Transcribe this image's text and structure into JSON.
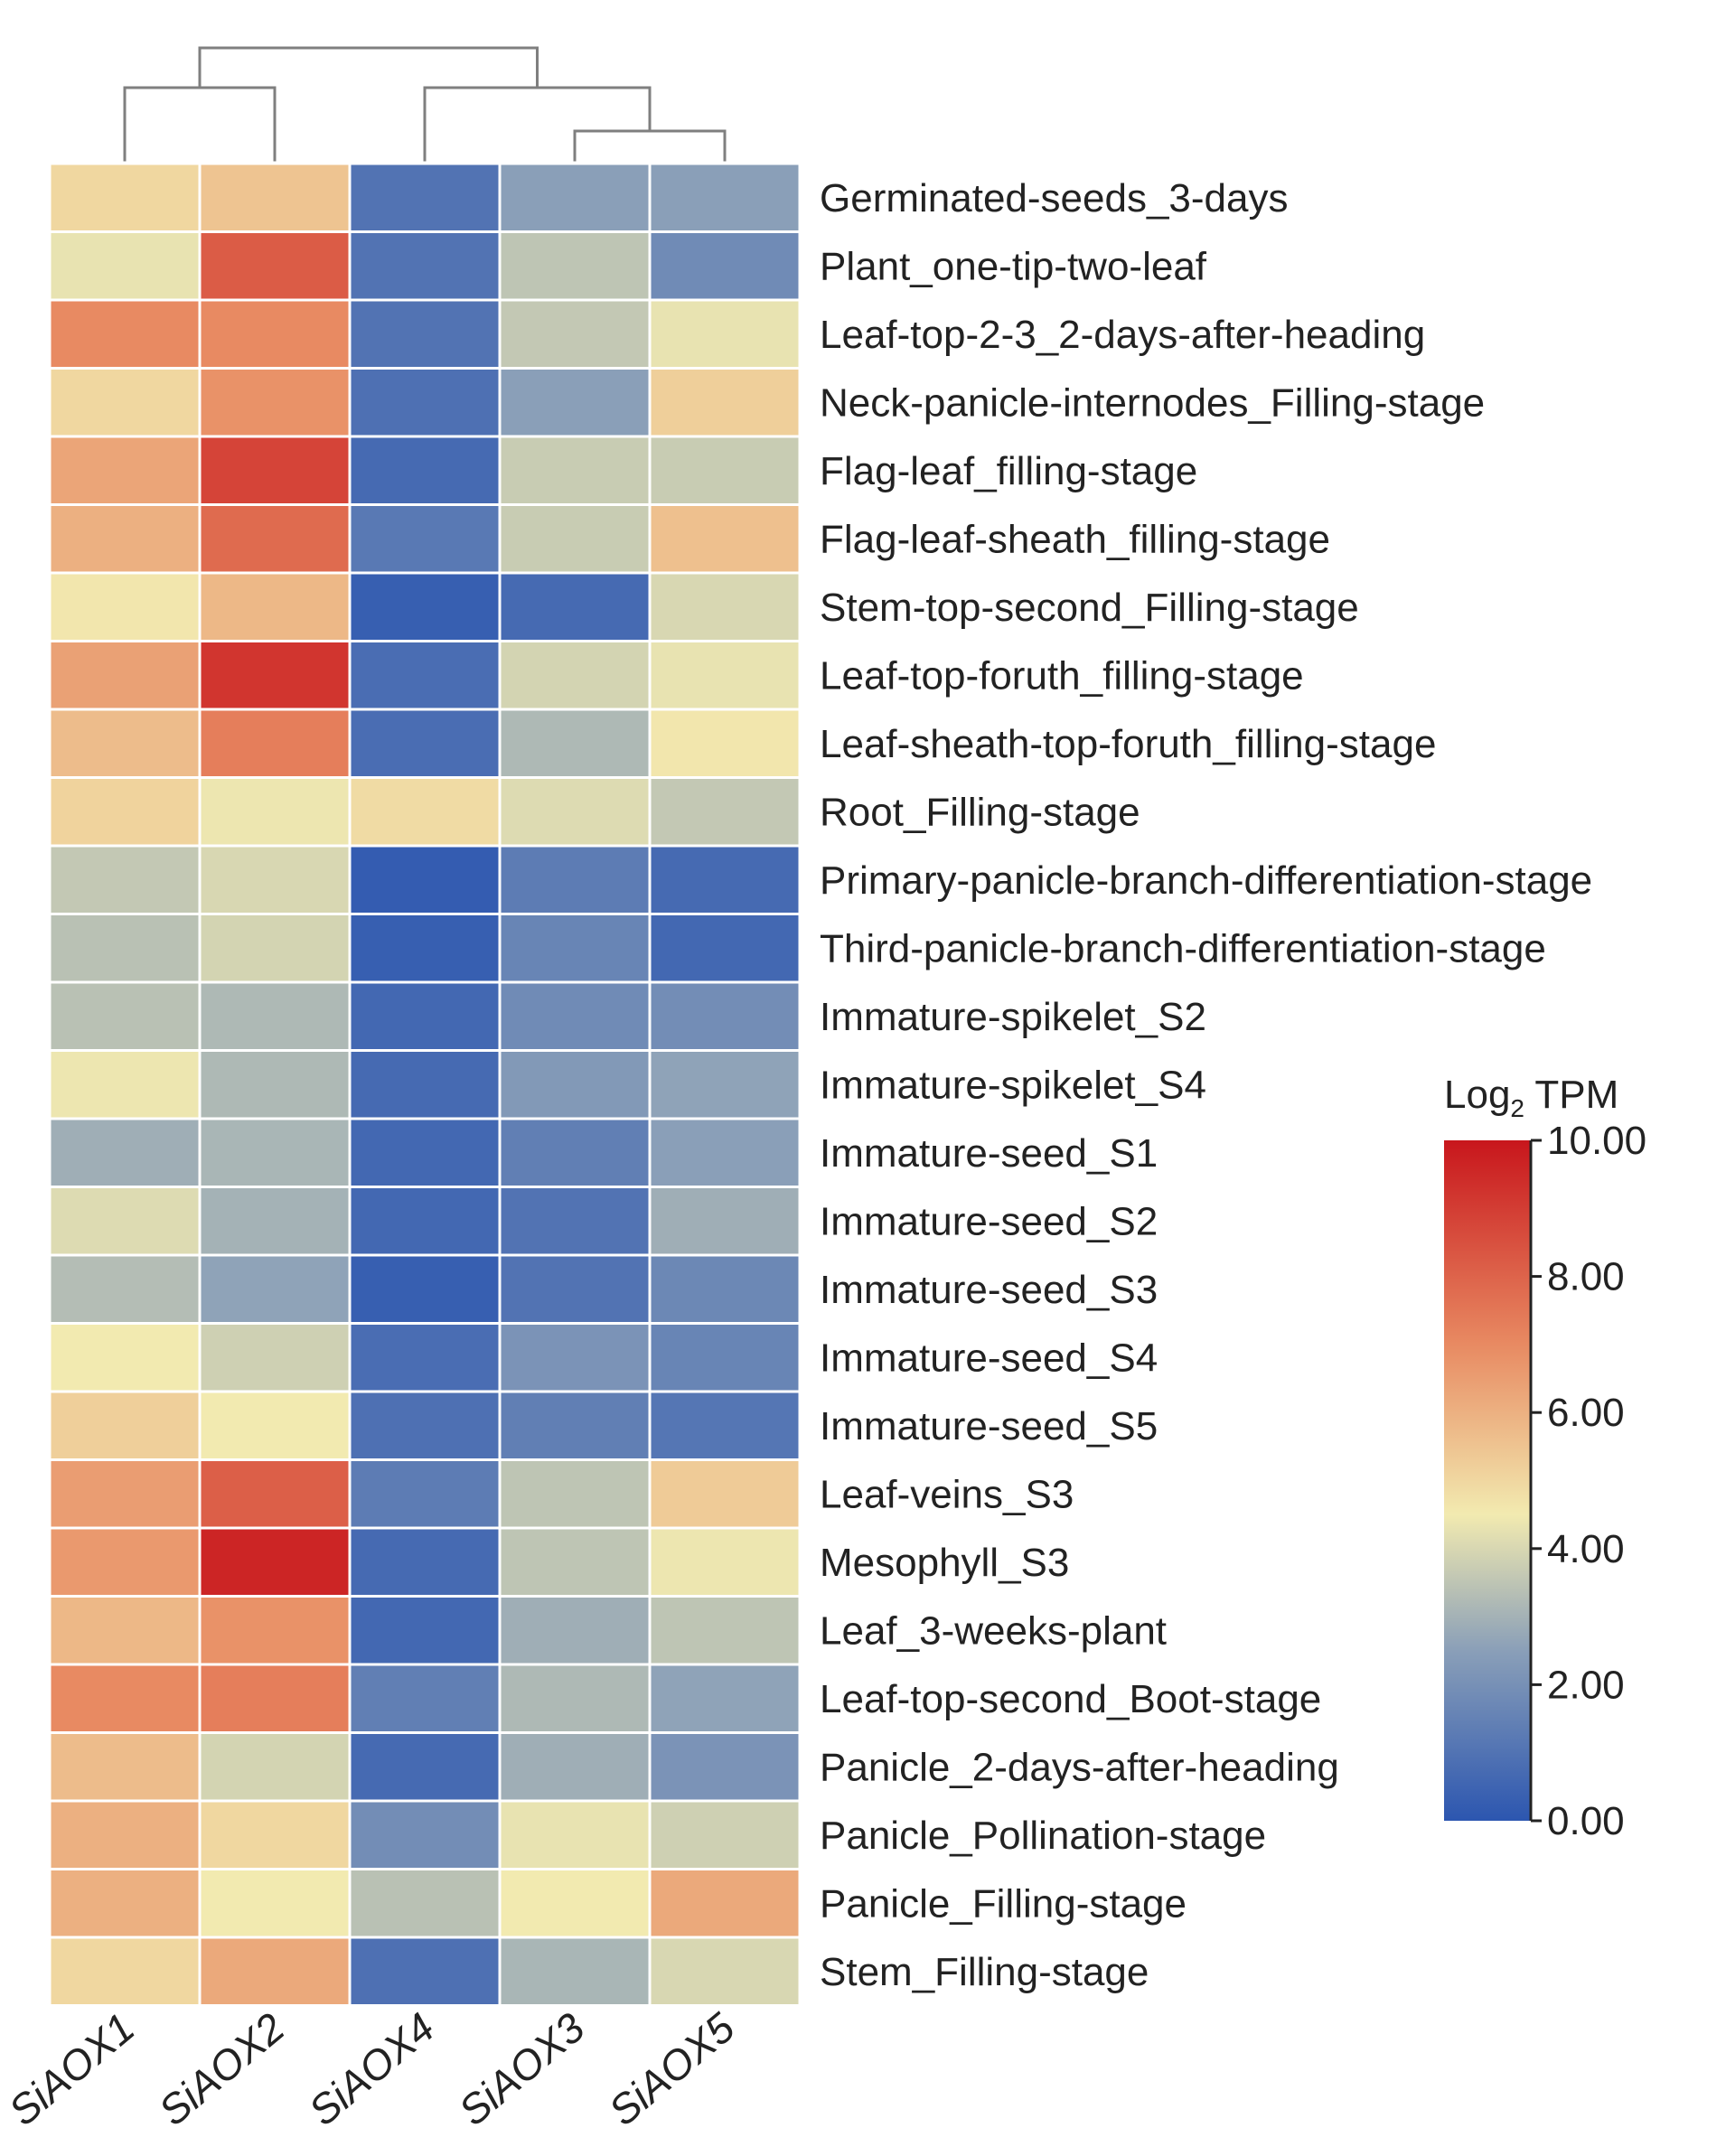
{
  "chart_data": {
    "type": "heatmap",
    "title": "",
    "xlabel": "",
    "ylabel": "",
    "columns": [
      "SiAOX1",
      "SiAOX2",
      "SiAOX4",
      "SiAOX3",
      "SiAOX5"
    ],
    "rows": [
      "Germinated-seeds_3-days",
      "Plant_one-tip-two-leaf",
      "Leaf-top-2-3_2-days-after-heading",
      "Neck-panicle-internodes_Filling-stage",
      "Flag-leaf_filling-stage",
      "Flag-leaf-sheath_filling-stage",
      "Stem-top-second_Filling-stage",
      "Leaf-top-foruth_filling-stage",
      "Leaf-sheath-top-foruth_filling-stage",
      "Root_Filling-stage",
      "Primary-panicle-branch-differentiation-stage",
      "Third-panicle-branch-differentiation-stage",
      "Immature-spikelet_S2",
      "Immature-spikelet_S4",
      "Immature-seed_S1",
      "Immature-seed_S2",
      "Immature-seed_S3",
      "Immature-seed_S4",
      "Immature-seed_S5",
      "Leaf-veins_S3",
      "Mesophyll_S3",
      "Leaf_3-weeks-plant",
      "Leaf-top-second_Boot-stage",
      "Panicle_2-days-after-heading",
      "Panicle_Pollination-stage",
      "Panicle_Filling-stage",
      "Stem_Filling-stage"
    ],
    "values": [
      [
        5.0,
        5.5,
        1.0,
        2.5,
        2.5
      ],
      [
        4.3,
        8.2,
        1.0,
        3.5,
        1.8
      ],
      [
        7.0,
        7.0,
        1.0,
        3.6,
        4.3
      ],
      [
        5.0,
        6.8,
        0.9,
        2.5,
        5.2
      ],
      [
        6.3,
        8.8,
        0.7,
        3.7,
        3.7
      ],
      [
        6.0,
        7.8,
        1.2,
        3.7,
        5.6
      ],
      [
        4.6,
        5.8,
        0.3,
        0.7,
        4.0
      ],
      [
        6.4,
        9.2,
        0.8,
        3.9,
        4.3
      ],
      [
        5.7,
        7.3,
        0.8,
        3.2,
        4.6
      ],
      [
        5.1,
        4.4,
        4.9,
        4.1,
        3.6
      ],
      [
        3.6,
        4.0,
        0.2,
        1.3,
        0.7
      ],
      [
        3.4,
        3.9,
        0.3,
        1.6,
        0.6
      ],
      [
        3.4,
        3.2,
        0.6,
        1.8,
        1.9
      ],
      [
        4.4,
        3.2,
        0.7,
        2.3,
        2.6
      ],
      [
        2.9,
        3.1,
        0.6,
        1.4,
        2.5
      ],
      [
        4.1,
        3.0,
        0.6,
        1.0,
        2.9
      ],
      [
        3.3,
        2.6,
        0.3,
        1.0,
        1.7
      ],
      [
        4.5,
        3.8,
        0.8,
        2.1,
        1.6
      ],
      [
        5.2,
        4.5,
        0.9,
        1.4,
        1.1
      ],
      [
        6.5,
        8.1,
        1.3,
        3.5,
        5.3
      ],
      [
        6.6,
        9.6,
        0.7,
        3.5,
        4.4
      ],
      [
        5.8,
        6.8,
        0.6,
        2.9,
        3.5
      ],
      [
        7.0,
        7.3,
        1.4,
        3.2,
        2.6
      ],
      [
        5.7,
        3.9,
        0.7,
        2.9,
        2.1
      ],
      [
        6.0,
        5.0,
        1.9,
        4.3,
        3.8
      ],
      [
        6.0,
        4.5,
        3.4,
        4.5,
        6.2
      ],
      [
        5.0,
        6.2,
        0.9,
        3.1,
        4.0
      ]
    ],
    "legend": {
      "title_prefix": "Log",
      "title_sub": "2",
      "title_suffix": " TPM",
      "ticks": [
        "0.00",
        "2.00",
        "4.00",
        "6.00",
        "8.00",
        "10.00"
      ],
      "min": 0,
      "max": 10,
      "placement": "right"
    },
    "dendrogram": "top",
    "colors": {
      "low": "#2c56b0",
      "lowmid": "#8a9fb8",
      "mid": "#f2eab0",
      "highmid": "#e88a62",
      "high": "#c8161c",
      "dendrogram": "#7f7f7f",
      "grid": "#ffffff",
      "text": "#222222"
    }
  }
}
